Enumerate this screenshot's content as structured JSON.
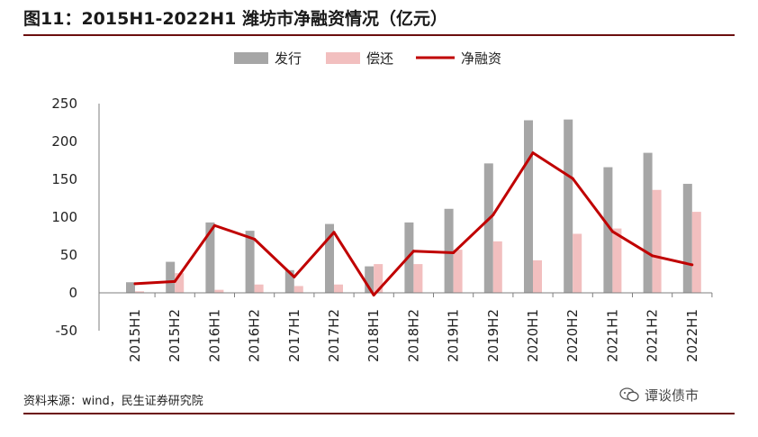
{
  "header": {
    "title": "图11：2015H1-2022H1 潍坊市净融资情况（亿元）"
  },
  "footer": {
    "source": "资料来源：wind，民生证券研究院",
    "watermark": "谭谈债市",
    "watermark_icon": "wechat-icon"
  },
  "colors": {
    "issuance": "#a6a6a6",
    "repayment": "#f2bfbf",
    "net": "#c00000"
  },
  "chart_data": {
    "type": "bar",
    "categories": [
      "2015H1",
      "2015H2",
      "2016H1",
      "2016H2",
      "2017H1",
      "2017H2",
      "2018H1",
      "2018H2",
      "2019H1",
      "2019H2",
      "2020H1",
      "2020H2",
      "2021H1",
      "2021H2",
      "2022H1"
    ],
    "series": [
      {
        "name": "发行",
        "type": "bar",
        "values": [
          14,
          41,
          93,
          82,
          30,
          91,
          35,
          93,
          111,
          171,
          228,
          229,
          166,
          185,
          144
        ]
      },
      {
        "name": "偿还",
        "type": "bar",
        "values": [
          2,
          26,
          4,
          11,
          9,
          11,
          38,
          38,
          57,
          68,
          43,
          78,
          85,
          136,
          107
        ]
      },
      {
        "name": "净融资",
        "type": "line",
        "values": [
          12,
          15,
          89,
          71,
          21,
          80,
          -3,
          55,
          53,
          103,
          185,
          151,
          81,
          49,
          37
        ]
      }
    ],
    "yticks": [
      "-50",
      "0",
      "50",
      "100",
      "150",
      "200",
      "250"
    ],
    "ylim": [
      -50,
      250
    ],
    "legend": "top",
    "grid": false
  }
}
